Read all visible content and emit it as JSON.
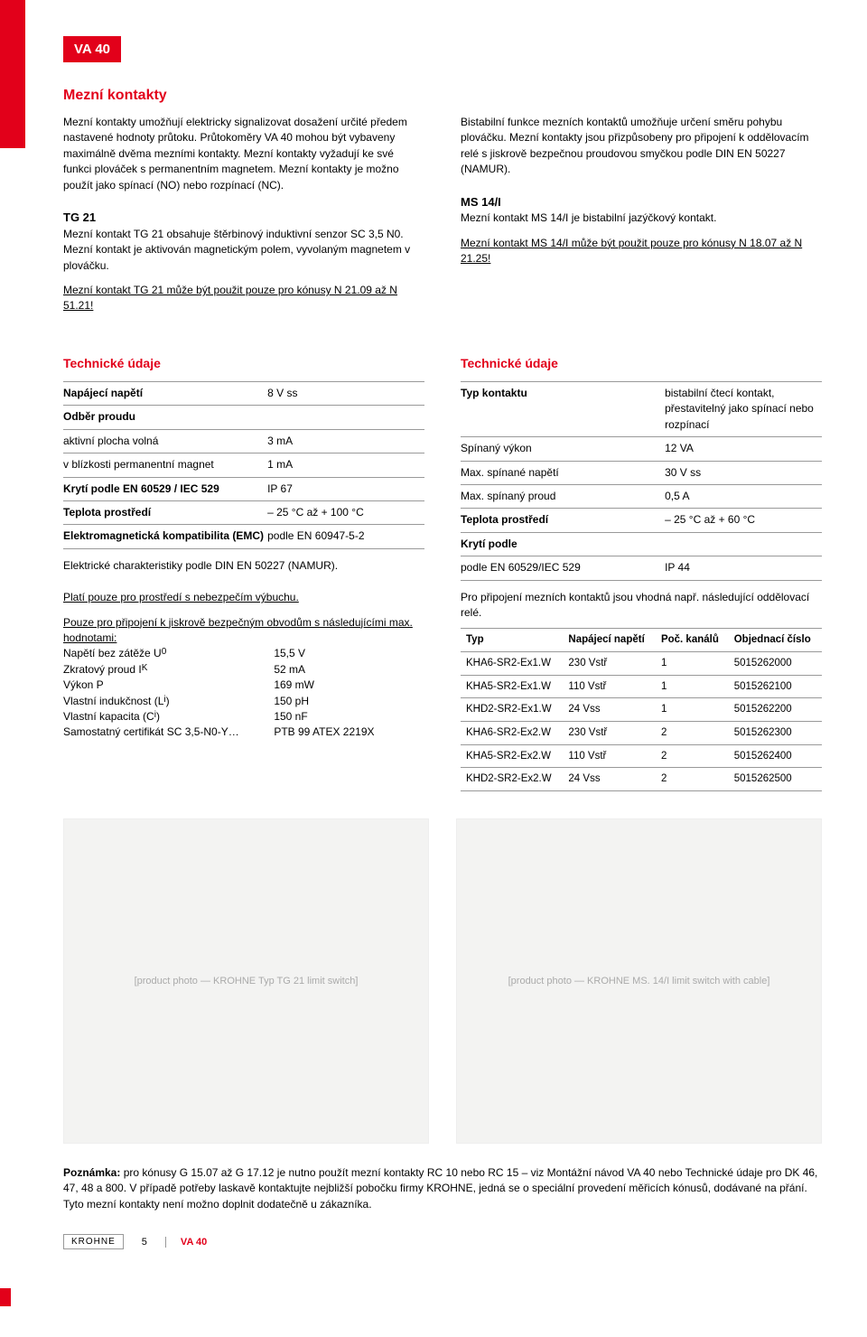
{
  "header": {
    "badge": "VA 40"
  },
  "section1": {
    "title": "Mezní kontakty",
    "left_p1": "Mezní kontakty umožňují elektricky signalizovat dosažení určité předem nastavené hodnoty průtoku. Průtokoměry VA 40 mohou být vybaveny maximálně dvěma mezními kontakty. Mezní kontakty vyžadují ke své funkci plováček s permanentním magnetem. Mezní kontakty je možno použít jako spínací (NO) nebo rozpínací (NC).",
    "right_p1": "Bistabilní funkce mezních kontaktů umožňuje určení směru pohybu plováčku. Mezní kontakty jsou přizpůsobeny pro připojení k oddělovacím relé s jiskrově bezpečnou proudovou smyčkou podle DIN EN 50227 (NAMUR).",
    "left_sub_title": "TG 21",
    "left_sub_p1": "Mezní kontakt TG 21 obsahuje štěrbinový induktivní senzor SC 3,5 N0. Mezní kontakt je aktivován magnetickým polem, vyvolaným magnetem v plováčku.",
    "left_sub_p2": "Mezní kontakt TG 21 může být použit pouze pro kónusy N 21.09 až N 51.21!",
    "right_sub_title": "MS 14/I",
    "right_sub_p1": "Mezní kontakt MS 14/I je bistabilní jazýčkový kontakt.",
    "right_sub_p2": "Mezní kontakt MS 14/I může být použit pouze pro kónusy N 18.07 až N 21.25!"
  },
  "tech_left": {
    "title": "Technické údaje",
    "rows": [
      {
        "label": "Napájecí napětí",
        "value": "8 V ss",
        "bold": true
      },
      {
        "label": "Odběr proudu",
        "value": "",
        "bold": true
      },
      {
        "label": "aktivní plocha volná",
        "value": "3 mA"
      },
      {
        "label": "v blízkosti permanentní magnet",
        "value": "1 mA"
      },
      {
        "label": "Krytí podle EN 60529 / IEC 529",
        "value": "IP 67",
        "bold_label": true
      },
      {
        "label": "Teplota prostředí",
        "value": "– 25 °C až + 100 °C",
        "bold": true
      },
      {
        "label": "Elektromagnetická kompatibilita (EMC)",
        "value": "podle EN 60947-5-2",
        "bold": true
      }
    ],
    "note1": "Elektrické charakteristiky podle DIN EN 50227 (NAMUR).",
    "note2": "Platí pouze pro prostředí s nebezpečím výbuchu.",
    "note3": "Pouze pro připojení k jiskrově bezpečným obvodům s následujícími max. hodnotami:",
    "hodnoty": [
      {
        "label": "Napětí bez zátěže U",
        "sub": "0",
        "value": "15,5 V"
      },
      {
        "label": "Zkratový proud I",
        "sub": "K",
        "value": "52 mA"
      },
      {
        "label": "Výkon P",
        "sub": "",
        "value": "169 mW"
      },
      {
        "label": "Vlastní indukčnost (L",
        "sub": "i",
        "suffix": ")",
        "value": "150 pH"
      },
      {
        "label": "Vlastní kapacita (C",
        "sub": "i",
        "suffix": ")",
        "value": "150 nF"
      },
      {
        "label": "Samostatný certifikát SC 3,5-N0-Y…",
        "sub": "",
        "value": "PTB 99 ATEX 2219X"
      }
    ]
  },
  "tech_right": {
    "title": "Technické údaje",
    "rows": [
      {
        "label": "Typ kontaktu",
        "value": "bistabilní čtecí kontakt, přestavitelný jako spínací nebo rozpínací",
        "bold": true
      },
      {
        "label": "Spínaný výkon",
        "value": "12 VA"
      },
      {
        "label": "Max. spínané napětí",
        "value": "30 V ss"
      },
      {
        "label": "Max. spínaný proud",
        "value": "0,5 A"
      },
      {
        "label": "Teplota prostředí",
        "value": "– 25 °C až + 60 °C",
        "bold": true
      },
      {
        "label": "Krytí podle",
        "value": "",
        "bold": true
      },
      {
        "label": "podle EN 60529/IEC 529",
        "value": "IP 44"
      }
    ],
    "note": "Pro připojení mezních kontaktů jsou vhodná např. následující oddělovací relé.",
    "table": {
      "headers": [
        "Typ",
        "Napájecí napětí",
        "Poč. kanálů",
        "Objednací číslo"
      ],
      "rows": [
        [
          "KHA6-SR2-Ex1.W",
          "230 Vstř",
          "1",
          "5015262000"
        ],
        [
          "KHA5-SR2-Ex1.W",
          "110 Vstř",
          "1",
          "5015262100"
        ],
        [
          "KHD2-SR2-Ex1.W",
          "24 Vss",
          "1",
          "5015262200"
        ],
        [
          "KHA6-SR2-Ex2.W",
          "230 Vstř",
          "2",
          "5015262300"
        ],
        [
          "KHA5-SR2-Ex2.W",
          "110 Vstř",
          "2",
          "5015262400"
        ],
        [
          "KHD2-SR2-Ex2.W",
          "24 Vss",
          "2",
          "5015262500"
        ]
      ]
    }
  },
  "photos": {
    "left_alt": "[product photo — KROHNE Typ TG 21 limit switch]",
    "right_alt": "[product photo — KROHNE MS. 14/I limit switch with cable]"
  },
  "note_bottom": {
    "label": "Poznámka:",
    "text": " pro kónusy G 15.07 až G 17.12 je nutno použít mezní kontakty RC 10 nebo RC 15 – viz Montážní návod VA 40 nebo Technické údaje pro DK 46, 47, 48 a 800. V případě potřeby laskavě kontaktujte nejbližší pobočku firmy KROHNE, jedná se o speciální provedení měřicích kónusů, dodávané na přání. Tyto mezní kontakty není možno doplnit dodatečně u zákazníka."
  },
  "footer": {
    "page_num": "5",
    "logo": "KROHNE",
    "brand": "VA 40"
  },
  "colors": {
    "accent": "#e2001a",
    "rule": "#999999",
    "photo_bg": "#f3f3f2"
  }
}
